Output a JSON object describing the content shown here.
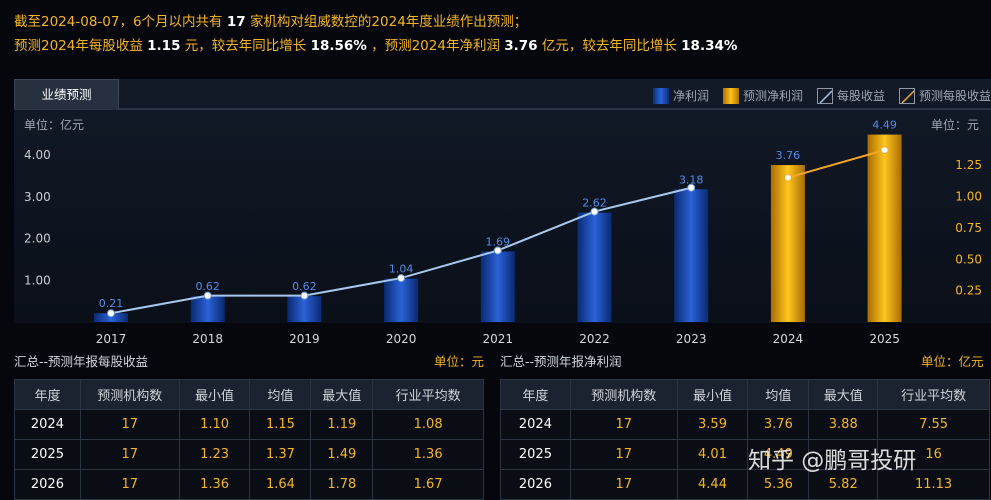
{
  "header": {
    "line1_prefix": "截至2024-08-07，6个月以内共有",
    "line1_count": "17",
    "line1_suffix": "家机构对组威数控的2024年度业绩作出预测；",
    "line2_a": "预测2024年每股收益",
    "line2_eps": "1.15",
    "line2_b": "元，较去年同比增长",
    "line2_eps_growth": "18.56%",
    "line2_c": "，预测2024年净利润",
    "line2_profit": "3.76",
    "line2_d": "亿元，较去年同比增长",
    "line2_profit_growth": "18.34%"
  },
  "tab_label": "业绩预测",
  "legend": {
    "net_profit": "净利润",
    "forecast_net_profit": "预测净利润",
    "eps": "每股收益",
    "forecast_eps": "预测每股收益"
  },
  "unit_left": "单位：亿元",
  "unit_right": "单位：元",
  "chart_data": {
    "type": "bar",
    "categories": [
      "2017",
      "2018",
      "2019",
      "2020",
      "2021",
      "2022",
      "2023",
      "2024",
      "2025"
    ],
    "series": [
      {
        "name": "净利润",
        "axis": "left",
        "values": [
          0.21,
          0.62,
          0.62,
          1.04,
          1.69,
          2.62,
          3.18,
          null,
          null
        ],
        "color": "#1e4fb8"
      },
      {
        "name": "预测净利润",
        "axis": "left",
        "values": [
          null,
          null,
          null,
          null,
          null,
          null,
          null,
          3.76,
          4.49
        ],
        "color": "#f5b010"
      },
      {
        "name": "每股收益",
        "type": "line",
        "axis": "right",
        "values": [
          0.07,
          0.21,
          0.21,
          0.35,
          0.57,
          0.88,
          1.07,
          null,
          null
        ],
        "color": "#a8c8ee"
      },
      {
        "name": "预测每股收益",
        "type": "line",
        "axis": "right",
        "values": [
          null,
          null,
          null,
          null,
          null,
          null,
          null,
          1.15,
          1.37
        ],
        "color": "#f5a623"
      }
    ],
    "data_labels": [
      "0.21",
      "0.62",
      "0.62",
      "1.04",
      "1.69",
      "2.62",
      "3.18",
      "3.76",
      "4.49"
    ],
    "left_axis": {
      "ticks": [
        "1.00",
        "2.00",
        "3.00",
        "4.00"
      ],
      "ylim": [
        0,
        4.6
      ]
    },
    "right_axis": {
      "ticks": [
        "0.25",
        "0.50",
        "0.75",
        "1.00",
        "1.25"
      ],
      "ylim": [
        0,
        1.53
      ]
    }
  },
  "eps_section": {
    "title": "汇总--预测年报每股收益",
    "unit": "单位：元",
    "columns": [
      "年度",
      "预测机构数",
      "最小值",
      "均值",
      "最大值",
      "行业平均数"
    ],
    "rows": [
      [
        "2024",
        "17",
        "1.10",
        "1.15",
        "1.19",
        "1.08"
      ],
      [
        "2025",
        "17",
        "1.23",
        "1.37",
        "1.49",
        "1.36"
      ],
      [
        "2026",
        "17",
        "1.36",
        "1.64",
        "1.78",
        "1.67"
      ]
    ]
  },
  "profit_section": {
    "title": "汇总--预测年报净利润",
    "unit": "单位：亿元",
    "columns": [
      "年度",
      "预测机构数",
      "最小值",
      "均值",
      "最大值",
      "行业平均数"
    ],
    "rows": [
      [
        "2024",
        "17",
        "3.59",
        "3.76",
        "3.88",
        "7.55"
      ],
      [
        "2025",
        "17",
        "4.01",
        "4.49",
        "",
        "16"
      ],
      [
        "2026",
        "17",
        "4.44",
        "5.36",
        "5.82",
        "11.13"
      ]
    ]
  },
  "watermark": "知乎 @鹏哥投研"
}
